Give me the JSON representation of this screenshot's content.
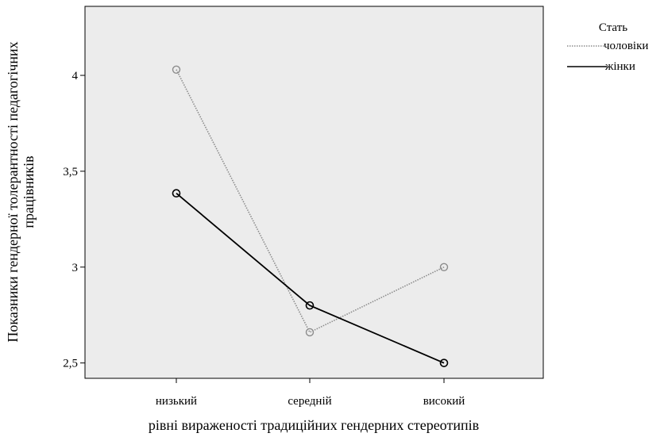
{
  "chart_data": {
    "type": "line",
    "categories": [
      "низький",
      "середній",
      "високий"
    ],
    "series": [
      {
        "name": "чоловіки",
        "values": [
          4.03,
          2.66,
          3.0
        ],
        "color": "#8c8c8c",
        "style": "dotted"
      },
      {
        "name": "жінки",
        "values": [
          3.385,
          2.8,
          2.5
        ],
        "color": "#000000",
        "style": "solid"
      }
    ],
    "xlabel": "рівні вираженості традиційних гендерних стереотипів",
    "ylabel_lines": [
      "Показники гендерної толерантності педагогічних",
      "працівників"
    ],
    "ylim": [
      2.42,
      4.36
    ],
    "yticks": [
      2.5,
      3,
      3.5,
      4
    ],
    "ytick_labels": [
      "2,5",
      "3",
      "3,5",
      "4"
    ],
    "legend": {
      "title": "Стать",
      "placement": "top-right"
    },
    "plot_background": "#ececec",
    "grid": false
  }
}
